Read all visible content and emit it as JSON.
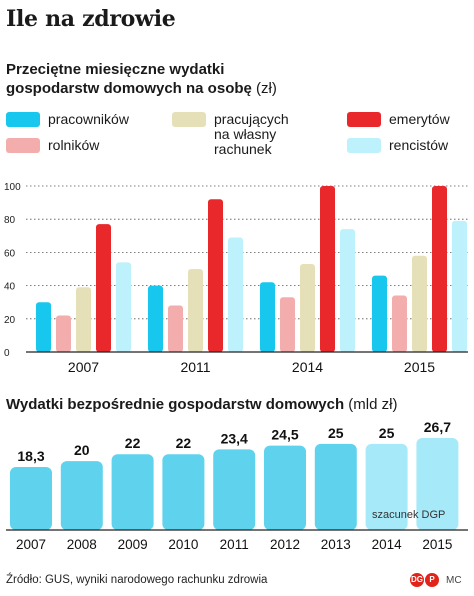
{
  "main_title": "Ile na zdrowie",
  "chart1": {
    "title_bold": "Przeciętne miesięczne wydatki gospodarstw domowych na osobę",
    "title_unit": "(zł)",
    "legend": [
      {
        "label": "pracowników",
        "color": "#17c7ee"
      },
      {
        "label": "pracujących\nna własny\nrachunek",
        "color": "#e6e0b8"
      },
      {
        "label": "emerytów",
        "color": "#e8282a"
      },
      {
        "label": "rolników",
        "color": "#f3adad"
      },
      {
        "label": "rencistów",
        "color": "#bdf1fb"
      }
    ]
  },
  "chart2": {
    "title_bold": "Wydatki bezpośrednie gospodarstw domowych",
    "title_unit": "(mld zł)",
    "note": "szacunek DGP"
  },
  "chart_data": [
    {
      "type": "bar",
      "title": "Przeciętne miesięczne wydatki gospodarstw domowych na osobę (zł)",
      "categories": [
        "2007",
        "2011",
        "2014",
        "2015"
      ],
      "series": [
        {
          "name": "pracowników",
          "color": "#17c7ee",
          "values": [
            30,
            40,
            42,
            46
          ]
        },
        {
          "name": "rolników",
          "color": "#f3adad",
          "values": [
            22,
            28,
            33,
            34
          ]
        },
        {
          "name": "pracujących na własny rachunek",
          "color": "#e6e0b8",
          "values": [
            39,
            50,
            53,
            58
          ]
        },
        {
          "name": "emerytów",
          "color": "#e8282a",
          "values": [
            77,
            92,
            100,
            100
          ]
        },
        {
          "name": "rencistów",
          "color": "#bdf1fb",
          "values": [
            54,
            69,
            74,
            79
          ]
        }
      ],
      "yticks": [
        "0",
        "20",
        "40",
        "60",
        "80",
        "100"
      ],
      "ylim": [
        0,
        100
      ],
      "grid": true
    },
    {
      "type": "bar",
      "title": "Wydatki bezpośrednie gospodarstw domowych (mld zł)",
      "categories": [
        "2007",
        "2008",
        "2009",
        "2010",
        "2011",
        "2012",
        "2013",
        "2014",
        "2015"
      ],
      "values": [
        18.3,
        20,
        22,
        22,
        23.4,
        24.5,
        25,
        25,
        26.7
      ],
      "labels": [
        "18,3",
        "20",
        "22",
        "22",
        "23,4",
        "24,5",
        "25",
        "25",
        "26,7"
      ],
      "colors": [
        "#5fd3ee",
        "#5fd3ee",
        "#5fd3ee",
        "#5fd3ee",
        "#5fd3ee",
        "#5fd3ee",
        "#5fd3ee",
        "#a6e9f8",
        "#a6e9f8"
      ]
    }
  ],
  "source": "Źródło: GUS, wyniki narodowego rachunku zdrowia",
  "logo": {
    "mark1": "DG",
    "mark2": "P",
    "author": "MC"
  }
}
